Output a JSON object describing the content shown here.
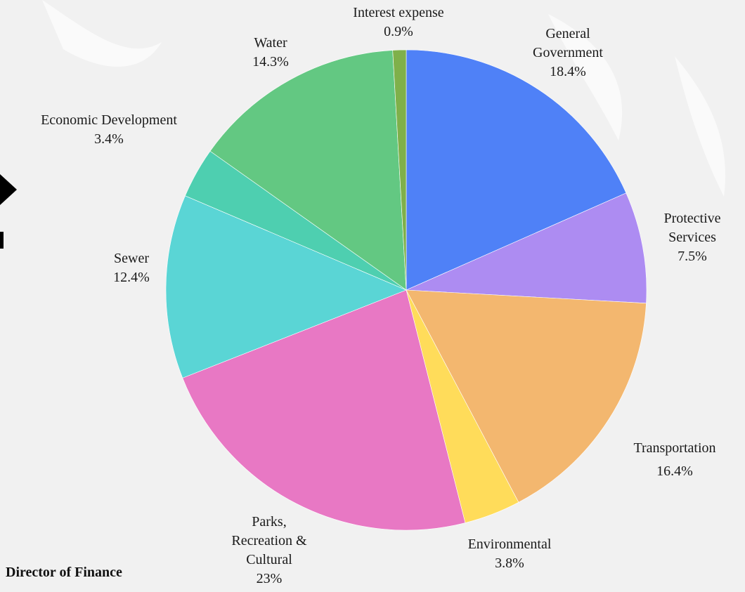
{
  "chart_data": {
    "type": "pie",
    "categories": [
      "General Government",
      "Protective Services",
      "Transportation",
      "Environmental",
      "Parks, Recreation & Cultural",
      "Sewer",
      "Economic Development",
      "Water",
      "Interest expense"
    ],
    "values": [
      18.4,
      7.5,
      16.4,
      3.8,
      23,
      12.4,
      3.4,
      14.3,
      0.9
    ],
    "value_labels": [
      "18.4%",
      "7.5%",
      "16.4%",
      "3.8%",
      "23%",
      "12.4%",
      "3.4%",
      "14.3%",
      "0.9%"
    ],
    "colors": [
      "#4f81f7",
      "#ad8cf2",
      "#f3b76f",
      "#ffdc5a",
      "#e878c4",
      "#5ad5d5",
      "#4ecfb0",
      "#63c882",
      "#7fb04a"
    ]
  },
  "page": {
    "caption": "Director of Finance"
  }
}
